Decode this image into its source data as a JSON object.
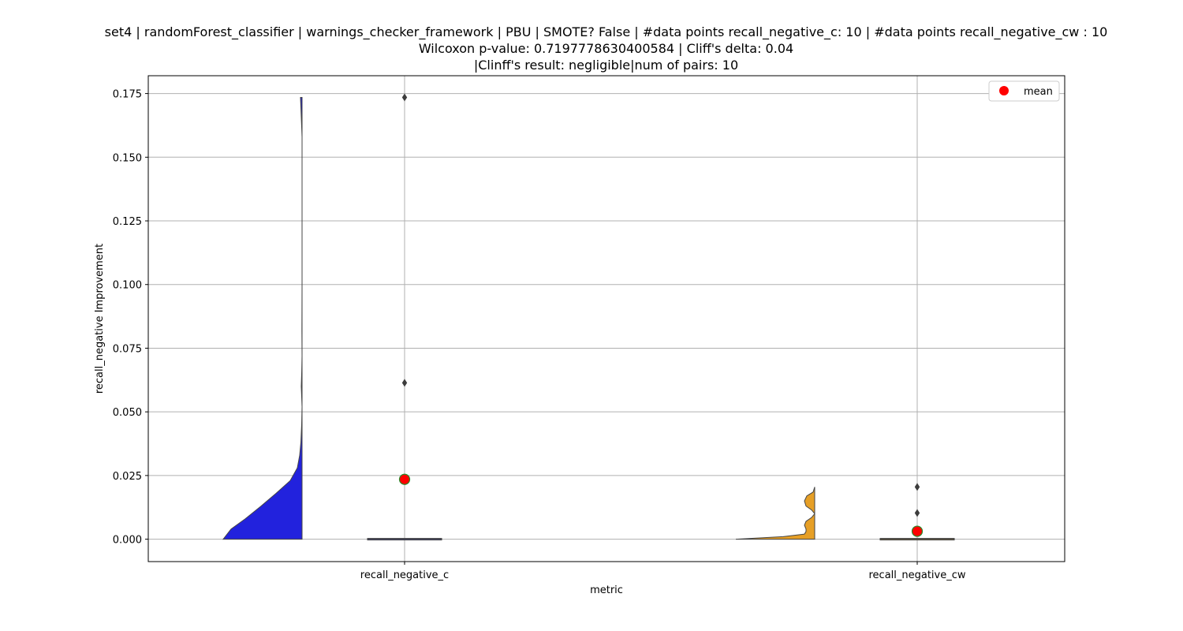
{
  "chart_data": {
    "type": "violin",
    "title_lines": [
      "set4 | randomForest_classifier | warnings_checker_framework | PBU | SMOTE? False | #data points recall_negative_c: 10 | #data points recall_negative_cw : 10",
      "Wilcoxon p-value: 0.7197778630400584 | Cliff's delta: 0.04",
      "|Clinff's result: negligible|num of pairs: 10"
    ],
    "xlabel": "metric",
    "ylabel": "recall_negative Improvement",
    "categories": [
      "recall_negative_c",
      "recall_negative_cw"
    ],
    "ylim": [
      -0.0088,
      0.182
    ],
    "yticks": [
      0.0,
      0.025,
      0.05,
      0.075,
      0.1,
      0.125,
      0.15,
      0.175
    ],
    "ytick_labels": [
      "0.000",
      "0.025",
      "0.050",
      "0.075",
      "0.100",
      "0.125",
      "0.150",
      "0.175"
    ],
    "grid": true,
    "legend": {
      "position": "top-right",
      "entries": [
        "mean"
      ]
    },
    "colors": {
      "recall_negative_c": "#2222dd",
      "recall_negative_cw": "#e69f26",
      "mean": "#ff0000",
      "mean_edge": "#2a8a2a",
      "grid": "#b0b0b0"
    },
    "series": [
      {
        "category": "recall_negative_c",
        "mean": 0.0235,
        "median": 0.0,
        "outliers": [
          0.1735,
          0.0614
        ],
        "violin_max": 0.1735,
        "violin_profile": [
          [
            0.0,
            1.0
          ],
          [
            0.004,
            0.9
          ],
          [
            0.008,
            0.72
          ],
          [
            0.013,
            0.52
          ],
          [
            0.018,
            0.33
          ],
          [
            0.023,
            0.15
          ],
          [
            0.028,
            0.06
          ],
          [
            0.033,
            0.03
          ],
          [
            0.038,
            0.015
          ],
          [
            0.045,
            0.005
          ],
          [
            0.052,
            0.0
          ],
          [
            0.06,
            0.01
          ],
          [
            0.066,
            0.004
          ],
          [
            0.072,
            0.0
          ],
          [
            0.082,
            0.002
          ],
          [
            0.1,
            0.0
          ],
          [
            0.15,
            0.0
          ],
          [
            0.158,
            0.0
          ],
          [
            0.1735,
            0.02
          ]
        ]
      },
      {
        "category": "recall_negative_cw",
        "mean": 0.0031,
        "median": 0.0,
        "outliers": [
          0.0205,
          0.0103
        ],
        "violin_max": 0.0205,
        "violin_profile": [
          [
            0.0,
            1.0
          ],
          [
            0.001,
            0.4
          ],
          [
            0.002,
            0.13
          ],
          [
            0.003,
            0.11
          ],
          [
            0.004,
            0.11
          ],
          [
            0.0055,
            0.13
          ],
          [
            0.007,
            0.11
          ],
          [
            0.0085,
            0.04
          ],
          [
            0.01,
            0.0
          ],
          [
            0.0115,
            0.04
          ],
          [
            0.013,
            0.11
          ],
          [
            0.015,
            0.13
          ],
          [
            0.017,
            0.1
          ],
          [
            0.0185,
            0.02
          ],
          [
            0.0205,
            0.0
          ]
        ]
      }
    ]
  }
}
